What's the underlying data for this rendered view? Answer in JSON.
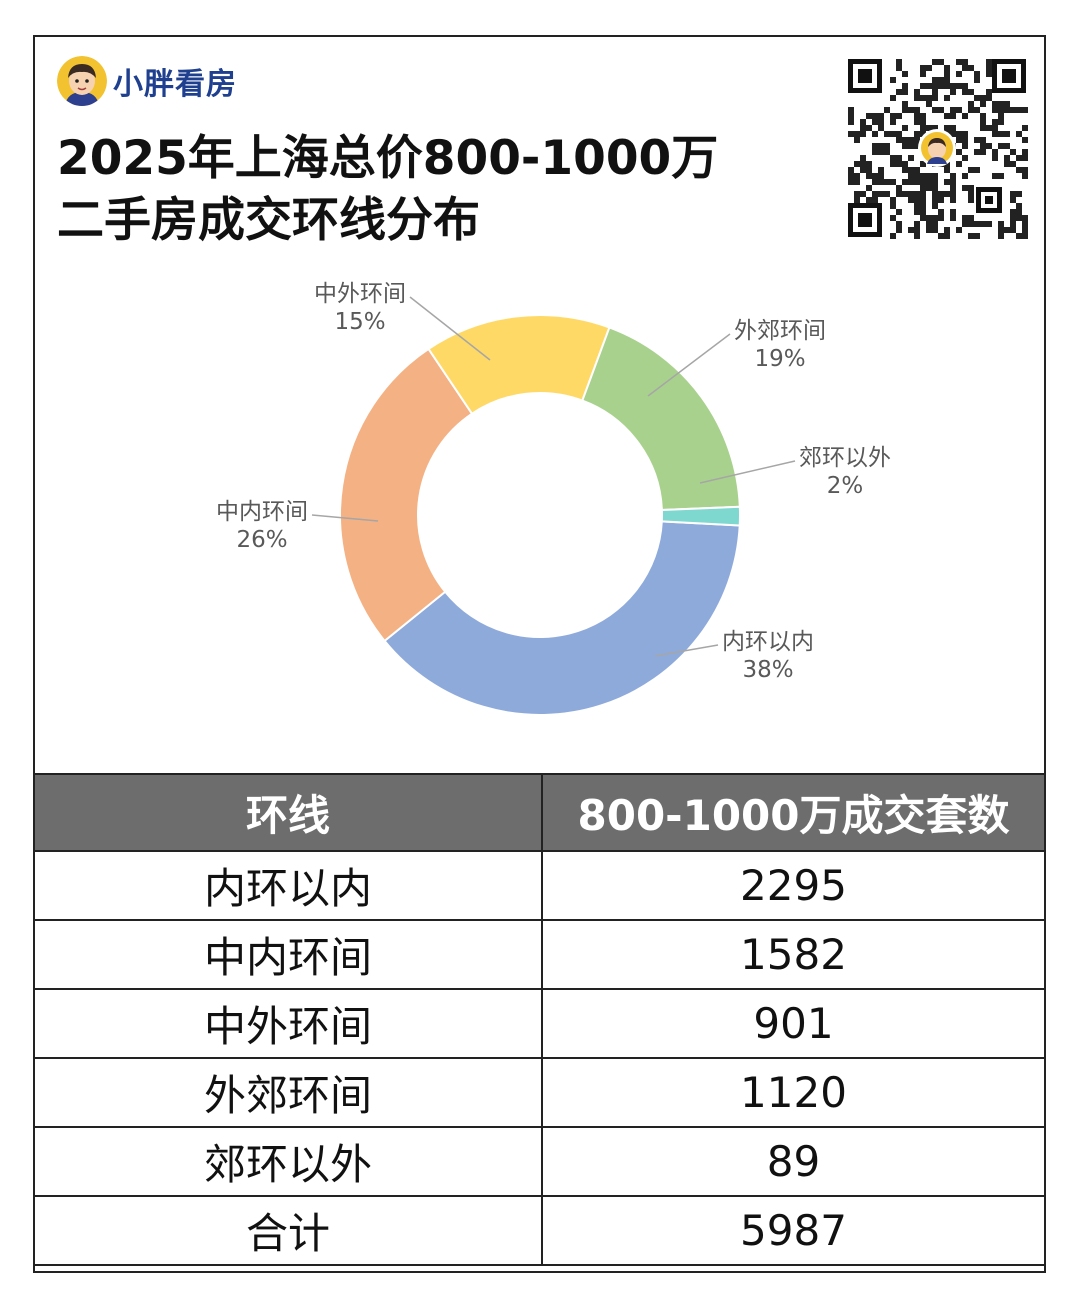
{
  "brand": {
    "name": "小胖看房"
  },
  "title": {
    "line1": "2025年上海总价800-1000万",
    "line2": "二手房成交环线分布"
  },
  "chart_data": {
    "type": "pie",
    "subtype": "donut",
    "title": "2025年上海总价800-1000万二手房成交环线分布",
    "categories": [
      "内环以内",
      "中内环间",
      "中外环间",
      "外郊环间",
      "郊环以外"
    ],
    "values": [
      2295,
      1582,
      901,
      1120,
      89
    ],
    "percent_labels": [
      "38%",
      "26%",
      "15%",
      "19%",
      "2%"
    ],
    "colors": [
      "#8eaadb",
      "#f4b183",
      "#ffd966",
      "#a9d18e",
      "#7fd8d0"
    ]
  },
  "table": {
    "headers": [
      "环线",
      "800-1000万成交套数"
    ],
    "rows": [
      [
        "内环以内",
        "2295"
      ],
      [
        "中内环间",
        "1582"
      ],
      [
        "中外环间",
        "901"
      ],
      [
        "外郊环间",
        "1120"
      ],
      [
        "郊环以外",
        "89"
      ],
      [
        "合计",
        "5987"
      ]
    ]
  }
}
